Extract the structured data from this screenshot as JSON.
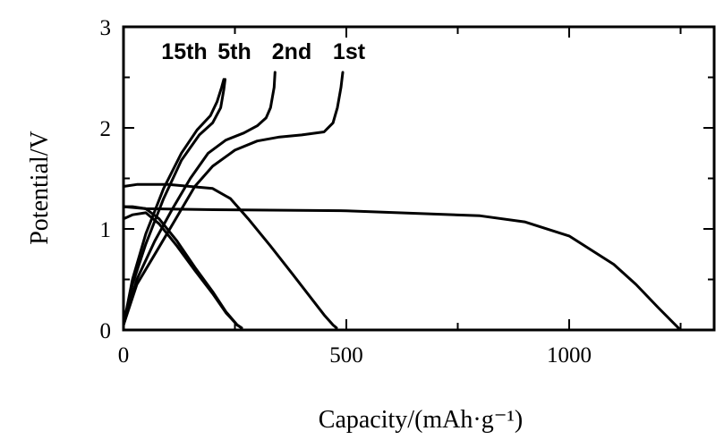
{
  "chart_data": {
    "type": "line",
    "title": "",
    "xlabel": "Capacity/(mAh·g⁻¹)",
    "ylabel": "Potential/V",
    "xlim": [
      0,
      1320
    ],
    "ylim": [
      0,
      3
    ],
    "xticks": [
      0,
      500,
      1000
    ],
    "yticks": [
      0,
      1,
      2,
      3
    ],
    "grid": false,
    "legend_position": "top-left inside plot",
    "series": [
      {
        "name": "1st",
        "discharge": {
          "x": [
            0,
            50,
            200,
            500,
            800,
            900,
            1000,
            1100,
            1150,
            1200,
            1245
          ],
          "y": [
            1.22,
            1.2,
            1.19,
            1.18,
            1.13,
            1.07,
            0.93,
            0.65,
            0.45,
            0.22,
            0.02
          ]
        },
        "charge": {
          "x": [
            0,
            30,
            80,
            120,
            160,
            200,
            250,
            300,
            350,
            400,
            450,
            470,
            480,
            488,
            492
          ],
          "y": [
            0.05,
            0.45,
            0.82,
            1.12,
            1.42,
            1.62,
            1.78,
            1.87,
            1.91,
            1.93,
            1.96,
            2.05,
            2.2,
            2.4,
            2.55
          ]
        }
      },
      {
        "name": "2nd",
        "discharge": {
          "x": [
            0,
            30,
            100,
            200,
            240,
            280,
            330,
            380,
            420,
            450,
            470,
            478
          ],
          "y": [
            1.42,
            1.44,
            1.44,
            1.4,
            1.3,
            1.1,
            0.83,
            0.55,
            0.32,
            0.15,
            0.05,
            0.02
          ]
        },
        "charge": {
          "x": [
            0,
            30,
            70,
            110,
            150,
            190,
            230,
            270,
            300,
            320,
            330,
            338,
            340
          ],
          "y": [
            0.05,
            0.5,
            0.88,
            1.2,
            1.5,
            1.75,
            1.88,
            1.95,
            2.02,
            2.1,
            2.2,
            2.4,
            2.55
          ]
        }
      },
      {
        "name": "5th",
        "discharge": {
          "x": [
            0,
            20,
            50,
            80,
            120,
            160,
            200,
            230,
            255,
            265
          ],
          "y": [
            1.22,
            1.22,
            1.2,
            1.1,
            0.88,
            0.62,
            0.38,
            0.18,
            0.05,
            0.02
          ]
        },
        "charge": {
          "x": [
            0,
            20,
            50,
            90,
            130,
            170,
            200,
            218,
            225,
            228
          ],
          "y": [
            0.05,
            0.45,
            0.85,
            1.3,
            1.68,
            1.93,
            2.05,
            2.2,
            2.38,
            2.48
          ]
        }
      },
      {
        "name": "15th",
        "discharge": {
          "x": [
            0,
            20,
            50,
            80,
            120,
            160,
            200,
            230,
            255,
            265
          ],
          "y": [
            1.1,
            1.14,
            1.16,
            1.05,
            0.83,
            0.59,
            0.36,
            0.17,
            0.05,
            0.02
          ]
        },
        "charge": {
          "x": [
            0,
            20,
            50,
            90,
            130,
            165,
            195,
            210,
            220,
            225
          ],
          "y": [
            0.05,
            0.5,
            0.95,
            1.4,
            1.75,
            1.98,
            2.12,
            2.26,
            2.4,
            2.48
          ]
        }
      }
    ]
  }
}
